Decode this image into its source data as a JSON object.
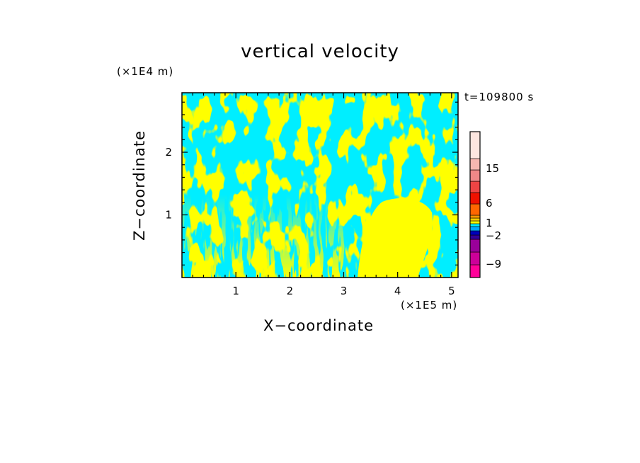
{
  "chart_data": {
    "type": "heatmap",
    "title": "vertical velocity",
    "xlabel": "X−coordinate",
    "ylabel": "Z−coordinate",
    "x_unit": "(×1E5 m)",
    "z_unit": "(×1E4 m)",
    "time_label": "t=109800 s",
    "xlim": [
      0,
      5.12
    ],
    "zlim": [
      0,
      2.95
    ],
    "x_ticks": [
      1,
      2,
      3,
      4,
      5
    ],
    "z_ticks": [
      1,
      2
    ],
    "dominant_fields": [
      {
        "color": "#ffff00",
        "range": "0 to 1"
      },
      {
        "color": "#00eeff",
        "range": "-1 to 0"
      }
    ],
    "colorbar": {
      "labeled_levels": [
        "15",
        "6",
        "1",
        "−2",
        "−9"
      ],
      "bands": [
        {
          "color": "#ff0099"
        },
        {
          "color": "#cc0099"
        },
        {
          "color": "#990099"
        },
        {
          "color": "#330099"
        },
        {
          "color": "#0000bb"
        },
        {
          "color": "#00aaff"
        },
        {
          "color": "#00eeff"
        },
        {
          "color": "#ffff00"
        },
        {
          "color": "#ffcc00"
        },
        {
          "color": "#ff9900"
        },
        {
          "color": "#ff6600"
        },
        {
          "color": "#ee1100"
        },
        {
          "color": "#ee4444"
        },
        {
          "color": "#f08888"
        },
        {
          "color": "#f7b7b0"
        },
        {
          "color": "#fde6e0"
        }
      ]
    }
  }
}
